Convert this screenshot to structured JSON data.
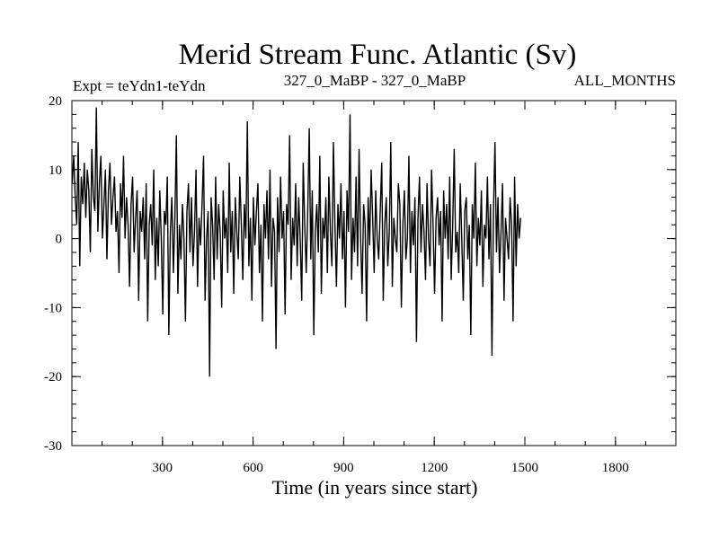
{
  "chart_data": {
    "type": "line",
    "title": "Merid Stream Func. Atlantic (Sv)",
    "experiment_label": "Expt = teYdn1-teYdn",
    "period_label": "327_0_MaBP - 327_0_MaBP",
    "months_label": "ALL_MONTHS",
    "xlabel": "Time (in years since start)",
    "ylabel": "",
    "xlim": [
      0,
      2000
    ],
    "ylim": [
      -30,
      20
    ],
    "x_ticks": [
      300,
      600,
      900,
      1200,
      1500,
      1800
    ],
    "x_tick_labels": [
      "300",
      "600",
      "900",
      "1200",
      "1500",
      "1800"
    ],
    "x_minor_step": 100,
    "y_ticks": [
      -30,
      -20,
      -10,
      0,
      10,
      20
    ],
    "y_tick_labels": [
      "-30",
      "-20",
      "-10",
      "0",
      "10",
      "20"
    ],
    "y_minor_step": 2,
    "grid": false,
    "line_color": "#000000",
    "series": [
      {
        "name": "Merid Stream Func. Atlantic",
        "x_start": 1,
        "x_step": 5,
        "values": [
          8,
          12,
          6,
          2,
          14,
          -4,
          9,
          5,
          11,
          3,
          10,
          7,
          -2,
          13,
          6,
          4,
          19,
          1,
          8,
          12,
          0,
          5,
          10,
          -3,
          7,
          11,
          2,
          6,
          9,
          1,
          4,
          -5,
          8,
          3,
          12,
          0,
          6,
          2,
          -7,
          5,
          9,
          -2,
          3,
          7,
          -9,
          4,
          1,
          6,
          -3,
          8,
          -12,
          2,
          5,
          -1,
          10,
          -6,
          3,
          -4,
          7,
          0,
          -11,
          4,
          2,
          9,
          -14,
          1,
          6,
          -5,
          3,
          15,
          -8,
          2,
          -3,
          5,
          0,
          -12,
          4,
          8,
          -2,
          6,
          -4,
          1,
          10,
          -7,
          3,
          -1,
          5,
          12,
          -9,
          0,
          4,
          -20,
          6,
          2,
          -6,
          9,
          -3,
          5,
          1,
          -10,
          7,
          0,
          3,
          -5,
          11,
          -2,
          4,
          -8,
          6,
          1,
          -3,
          9,
          2,
          -6,
          5,
          0,
          17,
          -4,
          3,
          -9,
          6,
          -1,
          4,
          8,
          -5,
          2,
          -12,
          5,
          0,
          7,
          -3,
          10,
          -7,
          3,
          1,
          -16,
          6,
          -2,
          9,
          0,
          4,
          -11,
          5,
          2,
          15,
          -6,
          3,
          -1,
          8,
          -4,
          6,
          0,
          -9,
          11,
          2,
          -5,
          4,
          16,
          -3,
          7,
          -14,
          1,
          5,
          -2,
          12,
          -8,
          3,
          0,
          6,
          -5,
          9,
          1,
          -4,
          14,
          2,
          -7,
          5,
          0,
          8,
          -3,
          4,
          -10,
          7,
          1,
          18,
          -6,
          3,
          -2,
          9,
          -4,
          13,
          0,
          -8,
          5,
          2,
          -12,
          6,
          -1,
          10,
          3,
          -5,
          7,
          0,
          -3,
          4,
          11,
          -9,
          2,
          6,
          -4,
          1,
          14,
          -7,
          3,
          0,
          -2,
          8,
          5,
          -10,
          2,
          7,
          -3,
          0,
          12,
          -5,
          4,
          -1,
          6,
          -15,
          3,
          9,
          -2,
          5,
          1,
          -6,
          8,
          0,
          -4,
          10,
          2,
          -8,
          3,
          6,
          -1,
          4,
          -12,
          7,
          0,
          5,
          -3,
          9,
          -6,
          2,
          13,
          -2,
          1,
          -5,
          8,
          0,
          -9,
          4,
          6,
          -3,
          2,
          -14,
          5,
          0,
          11,
          -4,
          3,
          -1,
          7,
          -7,
          2,
          0,
          9,
          -3,
          5,
          -17,
          4,
          14,
          -2,
          6,
          -5,
          1,
          8,
          -9,
          3,
          0,
          -3,
          6,
          2,
          -12,
          9,
          -4,
          5,
          0,
          3
        ]
      }
    ]
  }
}
